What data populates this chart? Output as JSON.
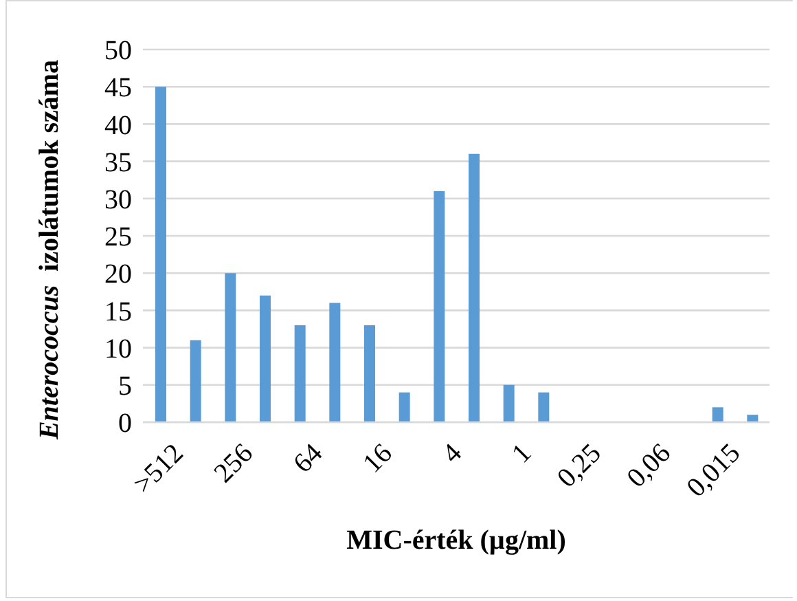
{
  "chart_data": {
    "type": "bar",
    "xlabel": "MIC-érték (µg/ml)",
    "ylabel": "Enterococcus izolátumok száma",
    "categories": [
      ">512",
      null,
      "256",
      null,
      "64",
      null,
      "16",
      null,
      "4",
      null,
      "1",
      null,
      "0,25",
      null,
      "0,06",
      null,
      "0,015",
      null
    ],
    "series": [
      {
        "color": "#5b9bd5",
        "values": [
          45,
          11,
          20,
          17,
          13,
          16,
          13,
          4,
          31,
          36,
          5,
          4,
          0,
          0,
          0,
          0,
          2,
          1
        ]
      }
    ],
    "ylim": [
      0,
      50
    ],
    "yticks": [
      0,
      5,
      10,
      15,
      20,
      25,
      30,
      35,
      40,
      45,
      50
    ],
    "grid": "y",
    "legend": false
  }
}
